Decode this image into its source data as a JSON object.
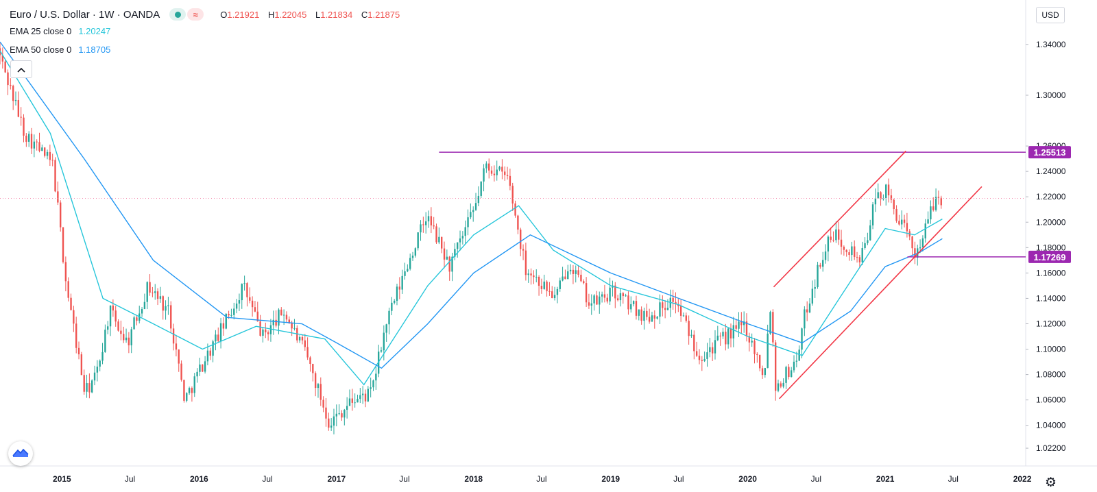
{
  "header": {
    "title": "Euro / U.S. Dollar · 1W · OANDA",
    "ohlc": {
      "o_label": "O",
      "o_value": "1.21921",
      "h_label": "H",
      "h_value": "1.22045",
      "l_label": "L",
      "l_value": "1.21834",
      "c_label": "C",
      "c_value": "1.21875"
    },
    "ema25_label": "EMA 25 close 0",
    "ema25_value": "1.20247",
    "ema50_label": "EMA 50 close 0",
    "ema50_value": "1.18705",
    "collapse_icon": "chevron-up-icon"
  },
  "currency_label": "USD",
  "colors": {
    "up": "#26a69a",
    "down": "#ef5350",
    "ema25": "#26c6da",
    "ema50": "#2196f3",
    "level": "#9c27b0",
    "channel": "#f23645",
    "current_price": "#f48fb1"
  },
  "chart_data": {
    "type": "candlestick",
    "symbol": "EURUSD",
    "interval": "1W",
    "xlabel": "",
    "ylabel": "",
    "ylim": [
      1.008,
      1.375
    ],
    "y_ticks": [
      "1.02200",
      "1.04000",
      "1.06000",
      "1.08000",
      "1.10000",
      "1.12000",
      "1.14000",
      "1.16000",
      "1.18000",
      "1.20000",
      "1.22000",
      "1.24000",
      "1.26000",
      "1.30000",
      "1.34000"
    ],
    "x_ticks": [
      "2015",
      "Jul",
      "2016",
      "Jul",
      "2017",
      "Jul",
      "2018",
      "Jul",
      "2019",
      "Jul",
      "2020",
      "Jul",
      "2021",
      "Jul",
      "2022"
    ],
    "x_tick_dates": [
      "2015-01-01",
      "2015-07-01",
      "2016-01-01",
      "2016-07-01",
      "2017-01-01",
      "2017-07-01",
      "2018-01-01",
      "2018-07-01",
      "2019-01-01",
      "2019-07-01",
      "2020-01-01",
      "2020-07-01",
      "2021-01-01",
      "2021-07-01",
      "2022-01-01"
    ],
    "x_range": [
      "2014-07-20",
      "2022-01-10"
    ],
    "price_anchors": [
      [
        "2014-07-20",
        1.337
      ],
      [
        "2014-10-01",
        1.27
      ],
      [
        "2014-12-15",
        1.245
      ],
      [
        "2015-01-20",
        1.15
      ],
      [
        "2015-03-10",
        1.065
      ],
      [
        "2015-04-10",
        1.08
      ],
      [
        "2015-05-15",
        1.13
      ],
      [
        "2015-07-01",
        1.105
      ],
      [
        "2015-08-25",
        1.15
      ],
      [
        "2015-10-20",
        1.13
      ],
      [
        "2015-12-01",
        1.06
      ],
      [
        "2016-01-20",
        1.09
      ],
      [
        "2016-03-25",
        1.125
      ],
      [
        "2016-05-05",
        1.15
      ],
      [
        "2016-06-25",
        1.11
      ],
      [
        "2016-08-20",
        1.13
      ],
      [
        "2016-10-20",
        1.095
      ],
      [
        "2016-12-20",
        1.042
      ],
      [
        "2017-02-20",
        1.06
      ],
      [
        "2017-04-10",
        1.065
      ],
      [
        "2017-05-20",
        1.12
      ],
      [
        "2017-07-20",
        1.17
      ],
      [
        "2017-09-05",
        1.205
      ],
      [
        "2017-11-05",
        1.165
      ],
      [
        "2018-01-10",
        1.21
      ],
      [
        "2018-02-10",
        1.245
      ],
      [
        "2018-04-10",
        1.235
      ],
      [
        "2018-05-25",
        1.165
      ],
      [
        "2018-08-15",
        1.14
      ],
      [
        "2018-09-20",
        1.17
      ],
      [
        "2018-11-15",
        1.135
      ],
      [
        "2019-01-15",
        1.145
      ],
      [
        "2019-04-15",
        1.125
      ],
      [
        "2019-06-25",
        1.14
      ],
      [
        "2019-09-01",
        1.095
      ],
      [
        "2019-12-30",
        1.12
      ],
      [
        "2020-02-20",
        1.08
      ],
      [
        "2020-03-10",
        1.14
      ],
      [
        "2020-03-20",
        1.07
      ],
      [
        "2020-05-15",
        1.09
      ],
      [
        "2020-06-10",
        1.13
      ],
      [
        "2020-07-31",
        1.18
      ],
      [
        "2020-08-30",
        1.19
      ],
      [
        "2020-11-05",
        1.17
      ],
      [
        "2020-12-15",
        1.22
      ],
      [
        "2021-01-08",
        1.225
      ],
      [
        "2021-03-30",
        1.175
      ],
      [
        "2021-05-25",
        1.22
      ],
      [
        "2021-06-02",
        1.219
      ]
    ],
    "ema_series": [
      {
        "name": "EMA 25 close 0",
        "points": [
          [
            "2014-07-20",
            1.335
          ],
          [
            "2014-12-01",
            1.27
          ],
          [
            "2015-04-20",
            1.14
          ],
          [
            "2015-09-01",
            1.12
          ],
          [
            "2016-01-10",
            1.1
          ],
          [
            "2016-06-01",
            1.118
          ],
          [
            "2016-12-01",
            1.108
          ],
          [
            "2017-03-15",
            1.072
          ],
          [
            "2017-09-01",
            1.15
          ],
          [
            "2018-01-01",
            1.19
          ],
          [
            "2018-05-01",
            1.213
          ],
          [
            "2018-08-01",
            1.178
          ],
          [
            "2019-01-01",
            1.15
          ],
          [
            "2019-07-01",
            1.135
          ],
          [
            "2020-01-01",
            1.11
          ],
          [
            "2020-05-25",
            1.095
          ],
          [
            "2020-09-01",
            1.14
          ],
          [
            "2021-01-01",
            1.195
          ],
          [
            "2021-03-20",
            1.19
          ],
          [
            "2021-06-02",
            1.2025
          ]
        ]
      },
      {
        "name": "EMA 50 close 0",
        "points": [
          [
            "2014-07-20",
            1.342
          ],
          [
            "2015-03-01",
            1.25
          ],
          [
            "2015-09-01",
            1.17
          ],
          [
            "2016-03-15",
            1.125
          ],
          [
            "2016-10-01",
            1.12
          ],
          [
            "2017-01-01",
            1.105
          ],
          [
            "2017-05-01",
            1.085
          ],
          [
            "2017-09-01",
            1.12
          ],
          [
            "2018-01-01",
            1.16
          ],
          [
            "2018-06-01",
            1.19
          ],
          [
            "2019-01-01",
            1.16
          ],
          [
            "2019-07-01",
            1.14
          ],
          [
            "2020-01-01",
            1.12
          ],
          [
            "2020-05-25",
            1.105
          ],
          [
            "2020-10-01",
            1.13
          ],
          [
            "2021-01-01",
            1.165
          ],
          [
            "2021-04-01",
            1.176
          ],
          [
            "2021-06-02",
            1.187
          ]
        ]
      }
    ],
    "levels": [
      {
        "price": 1.25513,
        "label": "1.25513",
        "from": "2017-10-01",
        "to": "2022-01-10"
      },
      {
        "price": 1.17269,
        "label": "1.17269",
        "from": "2021-03-01",
        "to": "2022-01-10"
      }
    ],
    "current_price": 1.21875,
    "channel": [
      {
        "from": [
          "2020-03-10",
          1.149
        ],
        "to": [
          "2021-02-25",
          1.256
        ]
      },
      {
        "from": [
          "2020-03-25",
          1.061
        ],
        "to": [
          "2021-09-15",
          1.228
        ]
      }
    ]
  }
}
